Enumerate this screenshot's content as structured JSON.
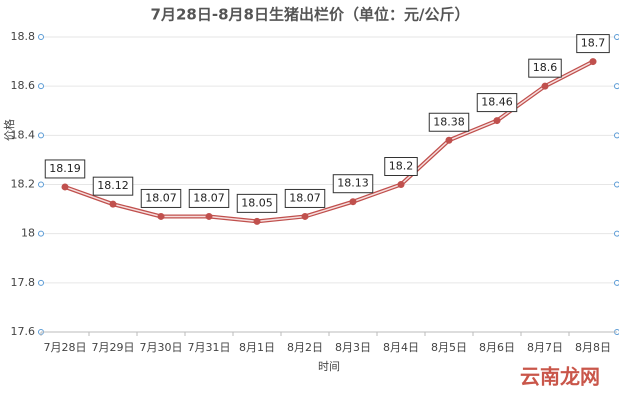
{
  "chart_data": {
    "type": "line",
    "title": "7月28日-8月8日生猪出栏价（单位：元/公斤）",
    "y_label": "价格",
    "x_label": "时间",
    "categories": [
      "7月28日",
      "7月29日",
      "7月30日",
      "7月31日",
      "8月1日",
      "8月2日",
      "8月3日",
      "8月4日",
      "8月5日",
      "8月6日",
      "8月7日",
      "8月8日"
    ],
    "values": [
      18.19,
      18.12,
      18.07,
      18.07,
      18.05,
      18.07,
      18.13,
      18.2,
      18.38,
      18.46,
      18.6,
      18.7
    ],
    "color": "#c0504d",
    "ylim": [
      17.6,
      18.8
    ],
    "yticks": [
      17.6,
      17.8,
      18,
      18.2,
      18.4,
      18.6,
      18.8
    ],
    "grid": true,
    "watermark": "云南龙网"
  }
}
